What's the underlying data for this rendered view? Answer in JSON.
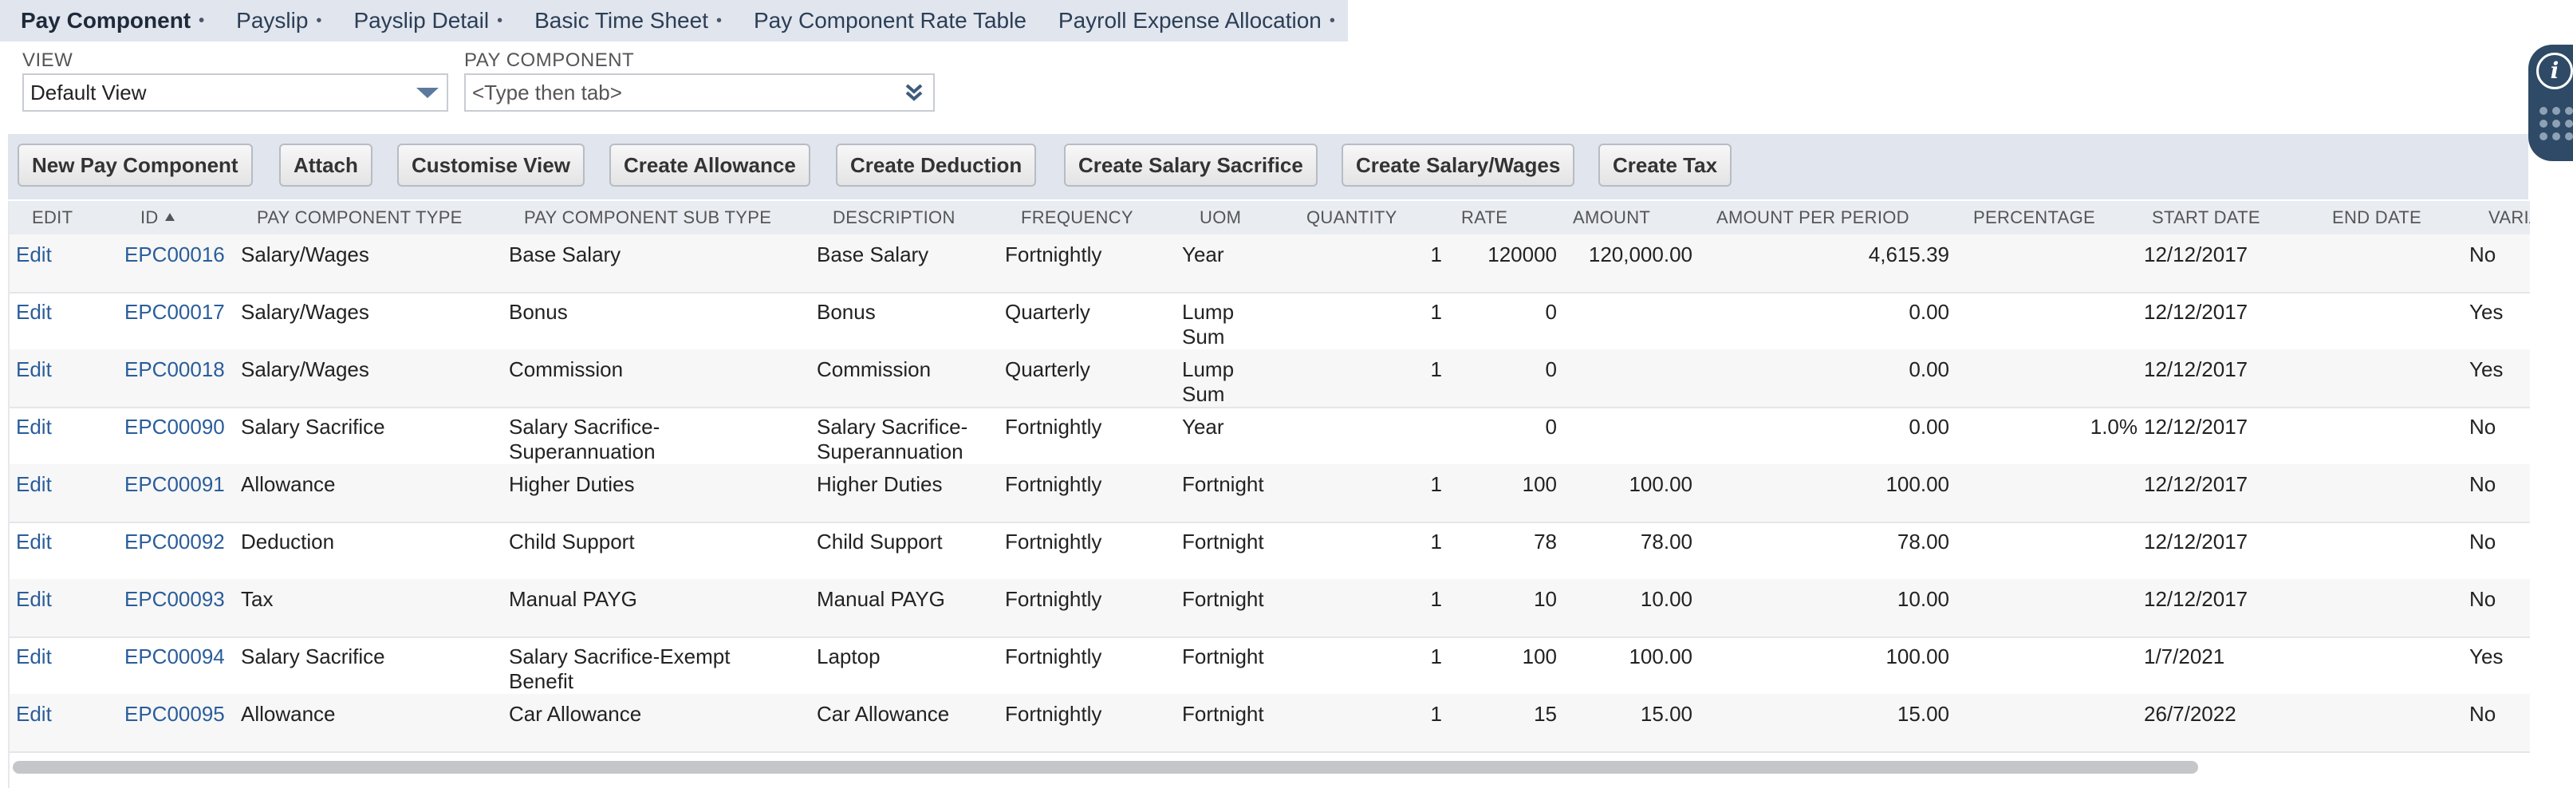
{
  "subtabs": [
    {
      "label": "Pay Component",
      "dot": "•",
      "active": true
    },
    {
      "label": "Payslip",
      "dot": "•"
    },
    {
      "label": "Payslip Detail",
      "dot": "•"
    },
    {
      "label": "Basic Time Sheet",
      "dot": "•"
    },
    {
      "label": "Pay Component Rate Table",
      "dot": ""
    },
    {
      "label": "Payroll Expense Allocation",
      "dot": "•"
    }
  ],
  "filters": {
    "view": {
      "label": "VIEW",
      "value": "Default View"
    },
    "pay_component": {
      "label": "PAY COMPONENT",
      "placeholder": "<Type then tab>"
    }
  },
  "buttons": {
    "new_pay_component": "New Pay Component",
    "attach": "Attach",
    "customise_view": "Customise View",
    "create_allowance": "Create Allowance",
    "create_deduction": "Create Deduction",
    "create_salary_sacrifice": "Create Salary Sacrifice",
    "create_salary_wages": "Create Salary/Wages",
    "create_tax": "Create Tax"
  },
  "table": {
    "headers": {
      "edit": "EDIT",
      "id": "ID",
      "type": "PAY COMPONENT TYPE",
      "subtype": "PAY COMPONENT SUB TYPE",
      "description": "DESCRIPTION",
      "frequency": "FREQUENCY",
      "uom": "UOM",
      "quantity": "QUANTITY",
      "rate": "RATE",
      "amount": "AMOUNT",
      "amount_per_period": "AMOUNT PER PERIOD",
      "percentage": "PERCENTAGE",
      "start_date": "START DATE",
      "end_date": "END DATE",
      "variable": "VARIABI"
    },
    "rows": [
      {
        "edit": "Edit",
        "id": "EPC00016",
        "type": "Salary/Wages",
        "subtype": "Base Salary",
        "description": "Base Salary",
        "frequency": "Fortnightly",
        "uom": "Year",
        "quantity": "1",
        "rate": "120000",
        "amount": "120,000.00",
        "amount_per_period": "4,615.39",
        "percentage": "",
        "start_date": "12/12/2017",
        "end_date": "",
        "variable": "No"
      },
      {
        "edit": "Edit",
        "id": "EPC00017",
        "type": "Salary/Wages",
        "subtype": "Bonus",
        "description": "Bonus",
        "frequency": "Quarterly",
        "uom": "Lump Sum",
        "quantity": "1",
        "rate": "0",
        "amount": "",
        "amount_per_period": "0.00",
        "percentage": "",
        "start_date": "12/12/2017",
        "end_date": "",
        "variable": "Yes"
      },
      {
        "edit": "Edit",
        "id": "EPC00018",
        "type": "Salary/Wages",
        "subtype": "Commission",
        "description": "Commission",
        "frequency": "Quarterly",
        "uom": "Lump Sum",
        "quantity": "1",
        "rate": "0",
        "amount": "",
        "amount_per_period": "0.00",
        "percentage": "",
        "start_date": "12/12/2017",
        "end_date": "",
        "variable": "Yes"
      },
      {
        "edit": "Edit",
        "id": "EPC00090",
        "type": "Salary Sacrifice",
        "subtype": "Salary Sacrifice-Superannuation",
        "description": "Salary Sacrifice-Superannuation",
        "frequency": "Fortnightly",
        "uom": "Year",
        "quantity": "",
        "rate": "0",
        "amount": "",
        "amount_per_period": "0.00",
        "percentage": "1.0%",
        "start_date": "12/12/2017",
        "end_date": "",
        "variable": "No"
      },
      {
        "edit": "Edit",
        "id": "EPC00091",
        "type": "Allowance",
        "subtype": "Higher Duties",
        "description": "Higher Duties",
        "frequency": "Fortnightly",
        "uom": "Fortnight",
        "quantity": "1",
        "rate": "100",
        "amount": "100.00",
        "amount_per_period": "100.00",
        "percentage": "",
        "start_date": "12/12/2017",
        "end_date": "",
        "variable": "No"
      },
      {
        "edit": "Edit",
        "id": "EPC00092",
        "type": "Deduction",
        "subtype": "Child Support",
        "description": "Child Support",
        "frequency": "Fortnightly",
        "uom": "Fortnight",
        "quantity": "1",
        "rate": "78",
        "amount": "78.00",
        "amount_per_period": "78.00",
        "percentage": "",
        "start_date": "12/12/2017",
        "end_date": "",
        "variable": "No"
      },
      {
        "edit": "Edit",
        "id": "EPC00093",
        "type": "Tax",
        "subtype": "Manual PAYG",
        "description": "Manual PAYG",
        "frequency": "Fortnightly",
        "uom": "Fortnight",
        "quantity": "1",
        "rate": "10",
        "amount": "10.00",
        "amount_per_period": "10.00",
        "percentage": "",
        "start_date": "12/12/2017",
        "end_date": "",
        "variable": "No"
      },
      {
        "edit": "Edit",
        "id": "EPC00094",
        "type": "Salary Sacrifice",
        "subtype": "Salary Sacrifice-Exempt Benefit",
        "description": "Laptop",
        "frequency": "Fortnightly",
        "uom": "Fortnight",
        "quantity": "1",
        "rate": "100",
        "amount": "100.00",
        "amount_per_period": "100.00",
        "percentage": "",
        "start_date": "1/7/2021",
        "end_date": "",
        "variable": "Yes"
      },
      {
        "edit": "Edit",
        "id": "EPC00095",
        "type": "Allowance",
        "subtype": "Car Allowance",
        "description": "Car Allowance",
        "frequency": "Fortnightly",
        "uom": "Fortnight",
        "quantity": "1",
        "rate": "15",
        "amount": "15.00",
        "amount_per_period": "15.00",
        "percentage": "",
        "start_date": "26/7/2022",
        "end_date": "",
        "variable": "No"
      }
    ]
  },
  "side_widget": {
    "info_glyph": "i"
  }
}
